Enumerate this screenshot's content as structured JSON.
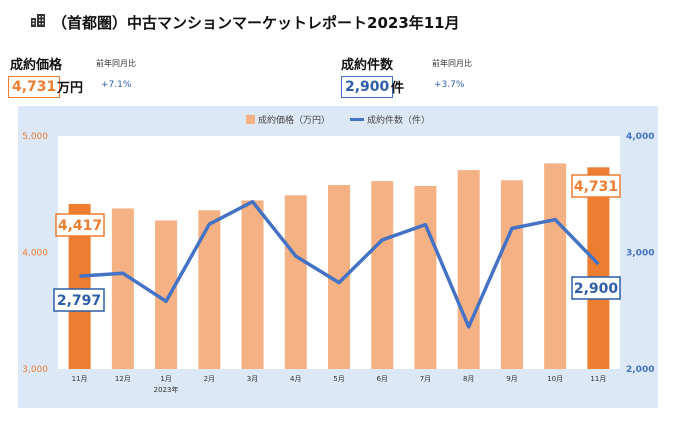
{
  "header": {
    "title": "（首都圏）中古マンションマーケットレポート2023年11月",
    "icon": "building-icon"
  },
  "kpis": {
    "price": {
      "label": "成約価格",
      "value": "4,731",
      "unit": "万円",
      "sub": "前年同月比",
      "delta": "+7.1%",
      "color": "#ed7d31"
    },
    "count": {
      "label": "成約件数",
      "value": "2,900",
      "unit": "件",
      "sub": "前年同月比",
      "delta": "+3.7%",
      "color": "#4472c4"
    }
  },
  "chart_data": {
    "type": "bar+line",
    "categories": [
      "11月",
      "12月",
      "1月",
      "2月",
      "3月",
      "4月",
      "5月",
      "6月",
      "7月",
      "8月",
      "9月",
      "10月",
      "11月"
    ],
    "year_label": "2023年",
    "series": [
      {
        "name": "成約価格（万円）",
        "type": "bar",
        "axis": "left",
        "values": [
          4417,
          4378,
          4275,
          4362,
          4447,
          4491,
          4579,
          4613,
          4571,
          4707,
          4620,
          4765,
          4731
        ]
      },
      {
        "name": "成約件数（件）",
        "type": "line",
        "axis": "right",
        "values": [
          2797,
          2822,
          2581,
          3243,
          3436,
          2969,
          2741,
          3108,
          3239,
          2362,
          3207,
          3283,
          2900
        ]
      }
    ],
    "y_left": {
      "min": 3000,
      "max": 5000,
      "ticks": [
        "3,000",
        "4,000",
        "5,000"
      ]
    },
    "y_right": {
      "min": 2000,
      "max": 4000,
      "ticks": [
        "2,000",
        "3,000",
        "4,000"
      ]
    },
    "callouts": {
      "bar_first": "4,417",
      "line_first": "2,797",
      "bar_last": "4,731",
      "line_last": "2,900"
    },
    "colors": {
      "bar": "#f4b183",
      "bar_highlight": "#ed7d31",
      "line": "#4472c4",
      "left_axis": "#ed7d31",
      "right_axis": "#4472c4"
    },
    "legend_position": "top-center",
    "grid": false
  }
}
